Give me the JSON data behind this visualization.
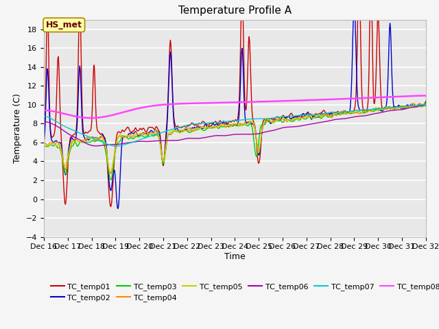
{
  "title": "Temperature Profile A",
  "xlabel": "Time",
  "ylabel": "Temperature (C)",
  "ylim": [
    -4,
    19
  ],
  "yticks": [
    -4,
    -2,
    0,
    2,
    4,
    6,
    8,
    10,
    12,
    14,
    16,
    18
  ],
  "colors": {
    "TC_temp01": "#cc0000",
    "TC_temp02": "#0000cc",
    "TC_temp03": "#00cc00",
    "TC_temp04": "#ff8800",
    "TC_temp05": "#cccc00",
    "TC_temp06": "#aa00aa",
    "TC_temp07": "#00cccc",
    "TC_temp08": "#ff44ff"
  },
  "annotation_label": "HS_met",
  "annotation_fgcolor": "#660000",
  "annotation_bgcolor": "#ffffaa",
  "annotation_edgecolor": "#aa8800",
  "fig_bgcolor": "#f5f5f5",
  "plot_bgcolor": "#e8e8e8",
  "grid_color": "#ffffff",
  "title_fontsize": 11,
  "label_fontsize": 9,
  "tick_fontsize": 8,
  "legend_fontsize": 8
}
